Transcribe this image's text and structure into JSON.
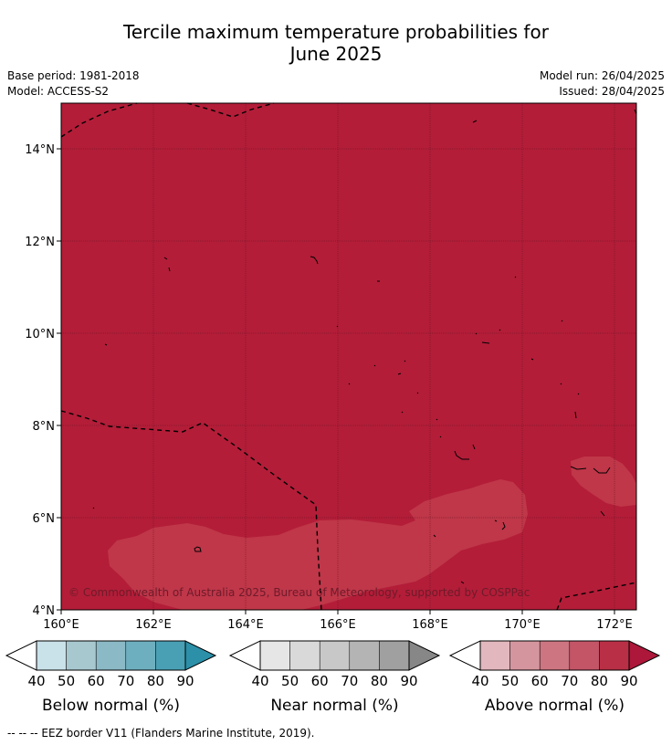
{
  "title": {
    "line1": "Tercile maximum temperature probabilities for",
    "line2": "June 2025"
  },
  "info": {
    "base_period": "Base period: 1981-2018",
    "model": "Model: ACCESS-S2",
    "model_run": "Model run: 26/04/2025",
    "issued": "Issued: 28/04/2025"
  },
  "map": {
    "lon_ticks": [
      "160°E",
      "162°E",
      "164°E",
      "166°E",
      "168°E",
      "170°E",
      "172°E"
    ],
    "lat_ticks": [
      "14°N",
      "12°N",
      "10°N",
      "8°N",
      "6°N",
      "4°N"
    ],
    "fill_color": "#b31d38",
    "patch_color": "#bf3749",
    "copyright": "© Commonwealth of Australia 2025, Bureau of Meteorology, supported by COSPPac"
  },
  "colorbars": [
    {
      "label": "Below normal (%)",
      "ticks": [
        "40",
        "50",
        "60",
        "70",
        "80",
        "90"
      ],
      "colors": [
        "#ffffff",
        "#c9e1e8",
        "#a7c8cf",
        "#8bb9c6",
        "#6eafbf",
        "#49a0b4",
        "#2b90a8"
      ]
    },
    {
      "label": "Near normal (%)",
      "ticks": [
        "40",
        "50",
        "60",
        "70",
        "80",
        "90"
      ],
      "colors": [
        "#ffffff",
        "#e6e6e6",
        "#d9d9d9",
        "#c8c8c8",
        "#b4b4b4",
        "#a0a0a0",
        "#878787"
      ]
    },
    {
      "label": "Above normal (%)",
      "ticks": [
        "40",
        "50",
        "60",
        "70",
        "80",
        "90"
      ],
      "colors": [
        "#ffffff",
        "#e2b7bd",
        "#d5959e",
        "#cd7581",
        "#c35567",
        "#b92f46",
        "#ad173a"
      ]
    }
  ],
  "legend_note": "--  --  -- EEZ border V11 (Flanders Marine Institute, 2019)."
}
